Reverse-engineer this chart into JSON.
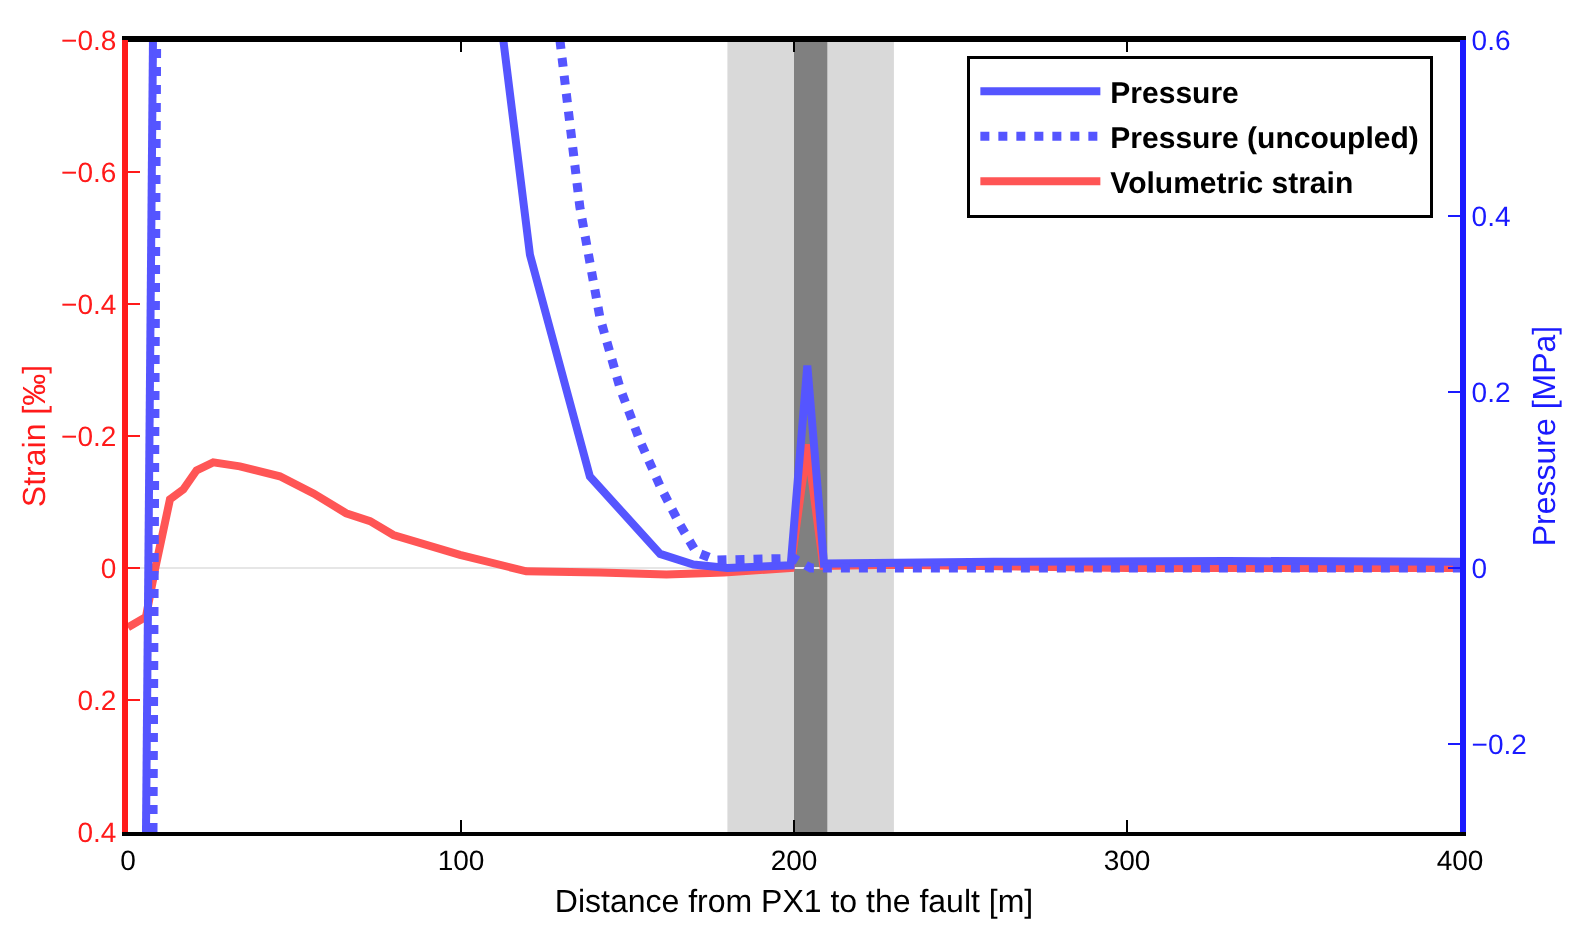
{
  "chart_data": {
    "type": "line",
    "xlabel": "Distance from PX1 to the fault [m]",
    "ylabel": "Strain [‰]",
    "y2label": "Pressure [MPa]",
    "xlim": [
      0,
      400
    ],
    "xticks": [
      0,
      100,
      200,
      300,
      400
    ],
    "ylim": [
      0.4,
      -0.8
    ],
    "yticks": [
      -0.8,
      -0.6,
      -0.4,
      -0.2,
      0,
      0.2,
      0.4
    ],
    "y2lim": [
      -0.3,
      0.6
    ],
    "y2ticks": [
      -0.2,
      0,
      0.2,
      0.4,
      0.6
    ],
    "legend": "top right",
    "grid": false,
    "ref_lines": [
      {
        "axis": "y",
        "value": 0,
        "color": "#e6e6e6"
      }
    ],
    "bands": [
      {
        "axis": "x",
        "from": 180,
        "to": 230,
        "color": "#d9d9d9"
      },
      {
        "axis": "x",
        "from": 200,
        "to": 210,
        "color": "#808080"
      }
    ],
    "series": [
      {
        "name": "Pressure",
        "color": "#5555ff",
        "axis": "y2",
        "line_style": "solid",
        "x": [
          5.4,
          7.5,
          60,
          112.7,
          120.7,
          138.7,
          159.8,
          169.8,
          180,
          199,
          204,
          209,
          260,
          330,
          400
        ],
        "values": [
          -0.3,
          0.6,
          null,
          0.6,
          0.356,
          0.104,
          0.016,
          0.004,
          0,
          0.003,
          0.23,
          0.005,
          0.007,
          0.008,
          0.007
        ]
      },
      {
        "name": "Pressure (uncoupled)",
        "color": "#5555ff",
        "axis": "y2",
        "line_style": "dotted",
        "x": [
          7.5,
          8.6,
          60,
          129.7,
          135.7,
          141.7,
          147.8,
          153.8,
          159.8,
          165.8,
          170.6,
          176.6,
          200,
          205,
          400
        ],
        "values": [
          -0.3,
          0.6,
          null,
          0.6,
          0.41,
          0.285,
          0.204,
          0.144,
          0.093,
          0.049,
          0.018,
          0.009,
          0.011,
          0,
          0
        ]
      },
      {
        "name": "Volumetric strain",
        "color": "#ff5555",
        "axis": "y",
        "line_style": "solid",
        "x": [
          0,
          5.4,
          8.2,
          12.6,
          16.6,
          20.6,
          25.6,
          33.6,
          45.6,
          55.7,
          65.5,
          72.7,
          79.7,
          99.7,
          119.6,
          141.7,
          161.7,
          179,
          199,
          204,
          208.8,
          230,
          300,
          400
        ],
        "values": [
          0.09,
          0.074,
          0,
          -0.104,
          -0.119,
          -0.148,
          -0.16,
          -0.154,
          -0.139,
          -0.113,
          -0.083,
          -0.071,
          -0.05,
          -0.02,
          0.005,
          0.007,
          0.01,
          0.007,
          0,
          -0.187,
          -0.003,
          -0.005,
          0,
          0
        ]
      }
    ]
  }
}
